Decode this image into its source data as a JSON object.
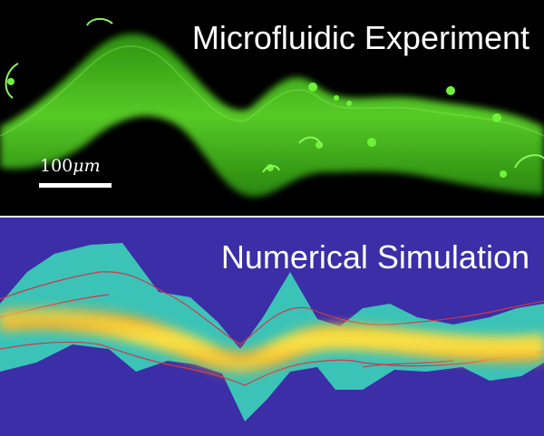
{
  "figure": {
    "experiment": {
      "title": "Microfluidic Experiment",
      "scale_bar": {
        "number": "100",
        "unit": "μm"
      },
      "colors": {
        "background": "#000000",
        "fluorescence": "#4bd11e"
      }
    },
    "simulation": {
      "title": "Numerical Simulation",
      "colors": {
        "background": "#3b2ea6",
        "channel": "#3bc3b8",
        "core": "#f5a623",
        "core_highlight": "#f7e64a",
        "boundary": "#d2354a"
      }
    }
  }
}
